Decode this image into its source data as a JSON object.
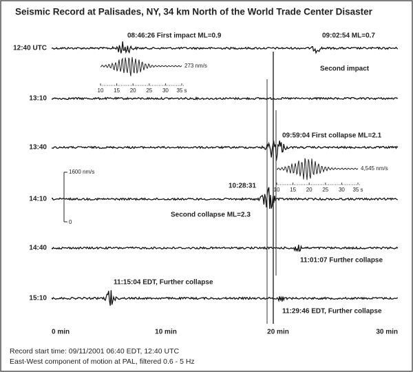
{
  "title": "Seismic Record at Palisades, NY, 34 km North of the World Trade Center Disaster",
  "traces": [
    "12:40 UTC",
    "13:10",
    "13:40",
    "14:10",
    "14:40",
    "15:10"
  ],
  "x_axis": [
    "0 min",
    "10 min",
    "20 min",
    "30 min"
  ],
  "annotations": [
    "08:46:26 First impact ML=0.9",
    "09:02:54 ML=0.7",
    "Second impact",
    "09:59:04 First collapse ML=2.1",
    "10:28:31",
    "Second collapse ML=2.3",
    "11:01:07 Further collapse",
    "11:15:04 EDT, Further collapse",
    "11:29:46 EDT, Further collapse"
  ],
  "inset_1": {
    "amplitude": "273 nm/s",
    "ticks": [
      "10",
      "15",
      "20",
      "25",
      "30",
      "35 s"
    ]
  },
  "inset_2": {
    "amplitude": "4,545 nm/s",
    "ticks": [
      "10",
      "15",
      "20",
      "25",
      "30",
      "35 s"
    ]
  },
  "scale_bar": {
    "top": "1600 nm/s",
    "bottom": "0"
  },
  "notes": [
    "Record start time: 09/11/2001 06:40 EDT, 12:40 UTC",
    "East-West component of motion at PAL, filtered 0.6 - 5 Hz"
  ]
}
